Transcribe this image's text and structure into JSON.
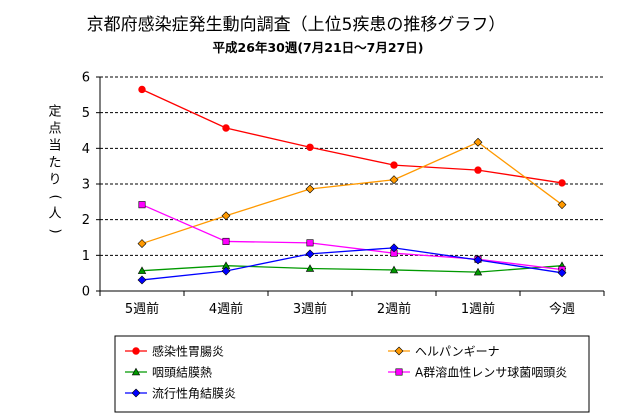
{
  "chart_data": {
    "type": "line",
    "title": "京都府感染症発生動向調査（上位5疾患の推移グラフ）",
    "subtitle": "平成26年30週(7月21日～7月27日)",
    "ylabel": "定点当たり(人)",
    "xlabel": "",
    "categories": [
      "5週前",
      "4週前",
      "3週前",
      "2週前",
      "1週前",
      "今週"
    ],
    "ylim": [
      0,
      6
    ],
    "yticks": [
      "0",
      "1",
      "2",
      "3",
      "4",
      "5",
      "6"
    ],
    "grid": "horizontal dashed",
    "legend_position": "bottom",
    "series": [
      {
        "name": "感染性胃腸炎",
        "color": "#ff0000",
        "marker": "circle",
        "values": [
          5.65,
          4.57,
          4.03,
          3.53,
          3.39,
          3.03
        ]
      },
      {
        "name": "ヘルパンギーナ",
        "color": "#ff9900",
        "marker": "diamond",
        "values": [
          1.33,
          2.11,
          2.86,
          3.12,
          4.17,
          2.42
        ]
      },
      {
        "name": "咽頭結膜熱",
        "color": "#009900",
        "marker": "triangle",
        "values": [
          0.57,
          0.71,
          0.63,
          0.59,
          0.53,
          0.71
        ]
      },
      {
        "name": "A群溶血性レンサ球菌咽頭炎",
        "color": "#ff00ff",
        "marker": "square",
        "values": [
          2.42,
          1.39,
          1.35,
          1.06,
          0.89,
          0.6
        ]
      },
      {
        "name": "流行性角結膜炎",
        "color": "#0000ff",
        "marker": "diamond",
        "values": [
          0.31,
          0.56,
          1.04,
          1.21,
          0.87,
          0.51
        ]
      }
    ]
  }
}
